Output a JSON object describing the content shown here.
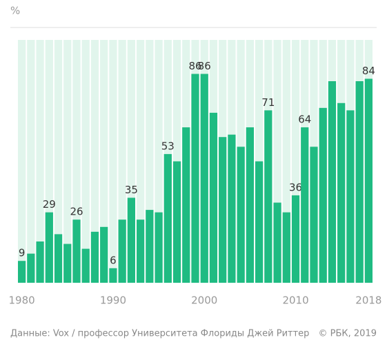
{
  "chart_data": {
    "type": "bar",
    "y_label": "%",
    "x": [
      1980,
      1981,
      1982,
      1983,
      1984,
      1985,
      1986,
      1987,
      1988,
      1989,
      1990,
      1991,
      1992,
      1993,
      1994,
      1995,
      1996,
      1997,
      1998,
      1999,
      2000,
      2001,
      2002,
      2003,
      2004,
      2005,
      2006,
      2007,
      2008,
      2009,
      2010,
      2011,
      2012,
      2013,
      2014,
      2015,
      2016,
      2017,
      2018
    ],
    "values": [
      9,
      12,
      17,
      29,
      20,
      16,
      26,
      14,
      21,
      23,
      6,
      26,
      35,
      26,
      30,
      29,
      53,
      50,
      64,
      86,
      86,
      70,
      60,
      61,
      56,
      64,
      50,
      71,
      33,
      29,
      36,
      64,
      56,
      72,
      83,
      74,
      71,
      83,
      84
    ],
    "value_labels": [
      "9",
      null,
      null,
      "29",
      null,
      null,
      "26",
      null,
      null,
      null,
      "6",
      null,
      "35",
      null,
      null,
      null,
      "53",
      null,
      null,
      "86",
      "86",
      null,
      null,
      null,
      null,
      null,
      null,
      "71",
      null,
      null,
      "36",
      "64",
      null,
      null,
      null,
      null,
      null,
      null,
      "84"
    ],
    "color": "#1fbb82",
    "background": "#e1f5ec",
    "xlim": [
      1979.5,
      2018.5
    ],
    "xticks": [
      1980,
      1990,
      2000,
      2010,
      2018
    ],
    "ylim": [
      0,
      100
    ],
    "source": "Данные: Vox / профессор Университета Флориды Джей Риттер",
    "copyright": "© РБК, 2019"
  }
}
